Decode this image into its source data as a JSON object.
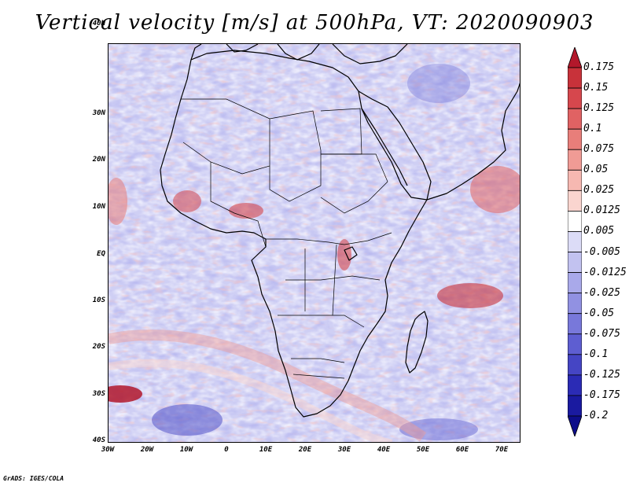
{
  "title": "Vertical velocity [m/s] at 500hPa, VT: 2020090903",
  "lat_labels": [
    "40N",
    "30N",
    "20N",
    "10N",
    "EQ",
    "10S",
    "20S",
    "30S",
    "40S"
  ],
  "lon_labels": [
    "30W",
    "20W",
    "10W",
    "0",
    "10E",
    "20E",
    "30E",
    "40E",
    "50E",
    "60E",
    "70E"
  ],
  "colorbar": {
    "labels": [
      "0.175",
      "0.15",
      "0.125",
      "0.1",
      "0.075",
      "0.05",
      "0.025",
      "0.0125",
      "0.005",
      "-0.005",
      "-0.0125",
      "-0.025",
      "-0.05",
      "-0.075",
      "-0.1",
      "-0.125",
      "-0.175",
      "-0.2"
    ],
    "colors": [
      "#b2182b",
      "#c8323a",
      "#d6474d",
      "#e06263",
      "#e87e7a",
      "#f09b95",
      "#f6b8b1",
      "#fad5cf",
      "#ffffff",
      "#dcdcf7",
      "#c2c2f0",
      "#a9a9ea",
      "#9191e2",
      "#7878da",
      "#5e5ed1",
      "#4545c4",
      "#2b2bb5",
      "#1a1aa0",
      "#0d0d8a"
    ]
  },
  "credit": "GrADS: IGES/COLA"
}
